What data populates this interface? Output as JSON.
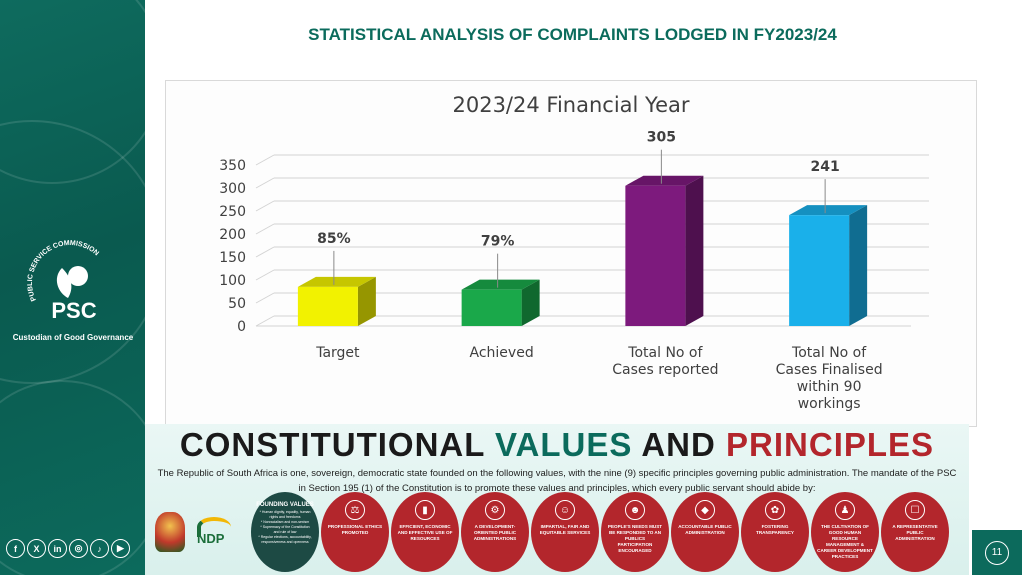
{
  "header": {
    "title": "STATISTICAL ANALYSIS OF COMPLAINTS LODGED IN FY2023/24"
  },
  "sidebar": {
    "logo_arc": "PUBLIC SERVICE COMMISSION",
    "logo_text": "PSC",
    "tagline": "Custodian of Good Governance",
    "socials": [
      {
        "icon": "facebook-icon",
        "glyph": "f"
      },
      {
        "icon": "x-icon",
        "glyph": "X"
      },
      {
        "icon": "linkedin-icon",
        "glyph": "in"
      },
      {
        "icon": "instagram-icon",
        "glyph": "◎"
      },
      {
        "icon": "tiktok-icon",
        "glyph": "♪"
      },
      {
        "icon": "youtube-icon",
        "glyph": "▶"
      }
    ]
  },
  "chart_data": {
    "type": "bar",
    "title": "2023/24 Financial Year",
    "categories": [
      "Target",
      "Achieved",
      "Total No of Cases reported",
      "Total No of Cases Finalised within 90 workings"
    ],
    "category_lines": [
      [
        "Target"
      ],
      [
        "Achieved"
      ],
      [
        "Total No of",
        "Cases reported"
      ],
      [
        "Total No of",
        "Cases Finalised",
        "within 90",
        "workings"
      ]
    ],
    "values": [
      85,
      79,
      305,
      241
    ],
    "data_labels": [
      "85%",
      "79%",
      "305",
      "241"
    ],
    "colors": [
      "#f2f200",
      "#1aa84a",
      "#7d1a7d",
      "#1ab0ea"
    ],
    "ylim": [
      0,
      350
    ],
    "yticks": [
      0,
      50,
      100,
      150,
      200,
      250,
      300,
      350
    ],
    "grid": true
  },
  "banner": {
    "title_words": [
      "CONSTITUTIONAL",
      "VALUES",
      "AND",
      "PRINCIPLES"
    ],
    "text": "The Republic of South Africa is one, sovereign, democratic state founded on the following values, with the nine (9) specific principles governing public administration. The mandate of the PSC in Section 195 (1) of the Constitution is to promote these values and principles, which every public servant should abide by:",
    "ndp": "NDP",
    "founding": {
      "title": "FOUNDING VALUES",
      "lines": [
        "* Human dignity, equality, human rights and freedoms",
        "* Nonracialism and non-sexism",
        "* Supremacy of the Constitution and rule of law",
        "* Regular elections, accountability, responsiveness and openness"
      ]
    },
    "principles": [
      {
        "icon": "scales-icon",
        "glyph": "⚖",
        "label": "PROFESSIONAL ETHICS PROMOTED"
      },
      {
        "icon": "growth-chart-icon",
        "glyph": "▮",
        "label": "EFFICIENT, ECONOMIC AND EFFECTIVE USE OF RESOURCES"
      },
      {
        "icon": "development-icon",
        "glyph": "⚙",
        "label": "A DEVELOPMENT-ORIENTED PUBLIC ADMINISTRATIONS"
      },
      {
        "icon": "fairness-icon",
        "glyph": "☺",
        "label": "IMPARTIAL, FAIR AND EQUITABLE SERVICES"
      },
      {
        "icon": "people-icon",
        "glyph": "☻",
        "label": "PEOPLE'S NEEDS MUST BE RESPONDED TO AN PUBLICS PARTICIPATION ENCOURAGED"
      },
      {
        "icon": "shield-icon",
        "glyph": "◆",
        "label": "ACCOUNTABLE PUBLIC ADMINISTRATION"
      },
      {
        "icon": "transparency-icon",
        "glyph": "✿",
        "label": "FOSTERING TRANSPARENCY"
      },
      {
        "icon": "hr-icon",
        "glyph": "♟",
        "label": "THE CULTIVATION OF GOOD HUMAN RESOURCE MANAGEMENT & CAREER DEVELOPMENT PRACTICES"
      },
      {
        "icon": "representative-icon",
        "glyph": "☐",
        "label": "A REPRESENTATIVE PUBLIC ADMINISTRATION"
      }
    ]
  },
  "page_number": "11"
}
